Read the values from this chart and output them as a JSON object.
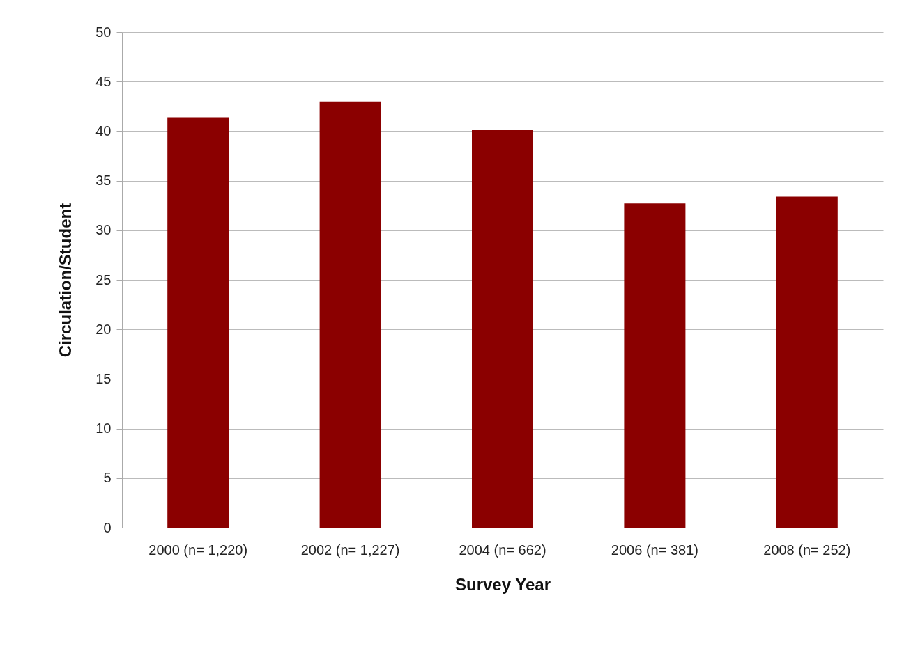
{
  "chart_data": {
    "type": "bar",
    "xlabel": "Survey Year",
    "ylabel": "Circulation/Student",
    "categories": [
      "2000 (n= 1,220)",
      "2002 (n= 1,227)",
      "2004 (n= 662)",
      "2006 (n= 381)",
      "2008 (n= 252)"
    ],
    "values": [
      41.4,
      43.0,
      40.1,
      32.7,
      33.4
    ],
    "color": "#8b0000",
    "ylim": [
      0,
      50
    ],
    "yticks": [
      0,
      5,
      10,
      15,
      20,
      25,
      30,
      35,
      40,
      45,
      50
    ],
    "grid": "y"
  }
}
